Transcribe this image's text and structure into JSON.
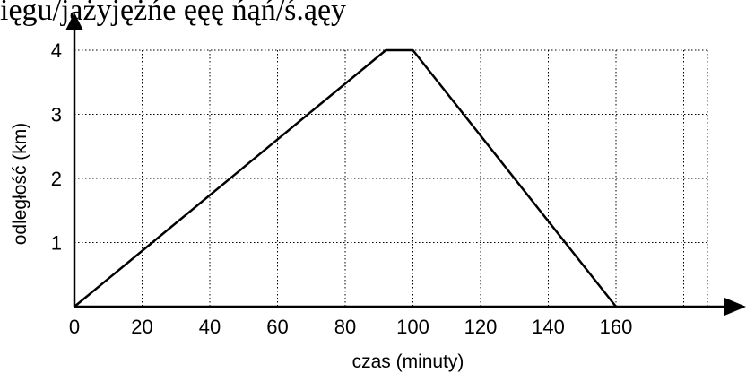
{
  "header": {
    "cropped_text": "ięgu/jażyjężńe ęęę ńąń/ś.ąęy"
  },
  "chart_data": {
    "type": "line",
    "xlabel": "czas (minuty)",
    "ylabel": "odległość (km)",
    "xlim": [
      0,
      187
    ],
    "ylim": [
      0,
      4
    ],
    "x_ticks": [
      0,
      20,
      40,
      60,
      80,
      100,
      120,
      140,
      160
    ],
    "y_ticks": [
      1,
      2,
      3,
      4
    ],
    "x_tick_labels": [
      "0",
      "20",
      "40",
      "60",
      "80",
      "100",
      "120",
      "140",
      "160"
    ],
    "y_tick_labels": [
      "1",
      "2",
      "3",
      "4"
    ],
    "grid": true,
    "series": [
      {
        "points": [
          {
            "x": 0,
            "y": 0
          },
          {
            "x": 92,
            "y": 4
          },
          {
            "x": 100,
            "y": 4
          },
          {
            "x": 160,
            "y": 0
          }
        ]
      }
    ]
  }
}
